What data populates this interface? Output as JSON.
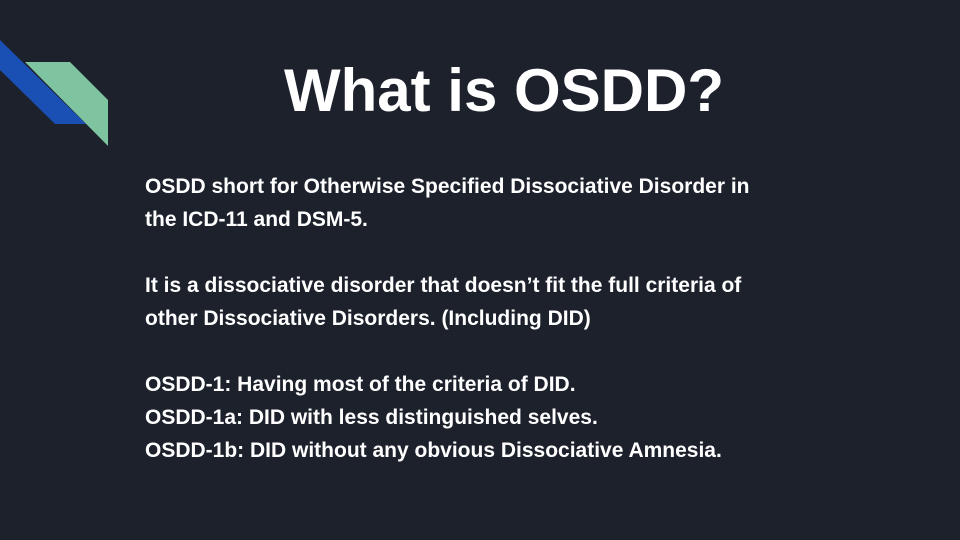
{
  "slide": {
    "title": "What is OSDD?",
    "paragraphs": [
      {
        "lines": [
          "OSDD short for Otherwise Specified Dissociative Disorder in",
          "the ICD-11 and DSM-5."
        ]
      },
      {
        "lines": [
          "It is a dissociative disorder that doesn’t fit the full criteria of",
          "other Dissociative Disorders. (Including DID)"
        ]
      },
      {
        "lines": [
          "OSDD-1: Having most of the criteria of DID.",
          "OSDD-1a: DID with less distinguished selves.",
          "OSDD-1b: DID without any obvious Dissociative Amnesia."
        ]
      }
    ]
  },
  "colors": {
    "background": "#1c212c",
    "text": "#ffffff",
    "accent_blue": "#1a4fb4",
    "accent_green": "#7fc4a0"
  }
}
